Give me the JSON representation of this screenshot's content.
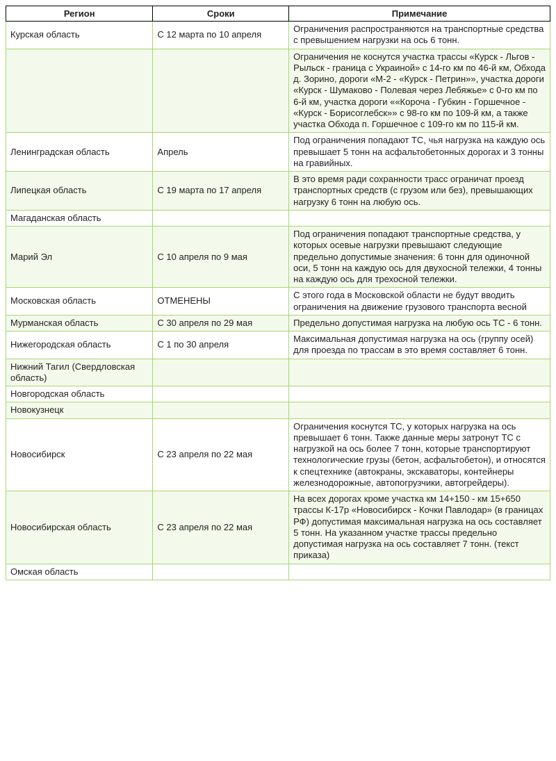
{
  "columns": [
    "Регион",
    "Сроки",
    "Примечание"
  ],
  "border_color": "#a8d66f",
  "alt_bg": "#f3faeb",
  "col_widths_pct": [
    27,
    25,
    48
  ],
  "rows": [
    {
      "alt": false,
      "cells": [
        "Курская область",
        "С 12 марта по 10 апреля",
        "Ограничения распространяются на транспортные средства с превышением нагрузки на ось 6 тонн."
      ]
    },
    {
      "alt": true,
      "cells": [
        "",
        "",
        "Ограничения не коснутся участка трассы «Курск - Льгов - Рыльск - граница с Украиной» с 14-го км по 46-й км, Обхода д. Зорино, дороги «М-2 - «Курск - Петрин»», участка дороги «Курск - Шумаково - Полевая через Лебяжье» с 0-го км по 6-й км, участка дороги ««Короча - Губкин - Горшечное - «Курск - Борисоглебск»» с 98-го км по 109-й км, а также участка Обхода п. Горшечное с 109-го км по 115-й км."
      ]
    },
    {
      "alt": false,
      "cells": [
        "Ленинградская область",
        "Апрель",
        "Под ограничения попадают ТС, чья нагрузка на каждую ось превышает 5 тонн на асфальтобетонных дорогах и 3 тонны на гравийных."
      ]
    },
    {
      "alt": true,
      "cells": [
        "Липецкая область",
        "С 19 марта по 17 апреля",
        "В это время ради сохранности трасс ограничат проезд транспортных средств (с грузом или без), превышающих нагрузку 6 тонн на любую ось."
      ]
    },
    {
      "alt": false,
      "cells": [
        "Магаданская область",
        "",
        ""
      ]
    },
    {
      "alt": true,
      "cells": [
        "Марий Эл",
        "С 10 апреля по 9 мая",
        "Под ограничения попадают транспортные средства, у которых осевые нагрузки превышают следующие предельно допустимые значения: 6 тонн для одиночной оси, 5 тонн на каждую ось для двухосной тележки, 4 тонны на каждую ось для трехосной тележки."
      ]
    },
    {
      "alt": false,
      "cells": [
        "Московская область",
        "ОТМЕНЕНЫ",
        "С этого года в Московской области не будут вводить ограничения на движение грузового транспорта весной"
      ]
    },
    {
      "alt": true,
      "cells": [
        "Мурманская область",
        "С 30 апреля по 29 мая",
        "Предельно допустимая нагрузка на любую ось ТС - 6 тонн."
      ]
    },
    {
      "alt": false,
      "cells": [
        "Нижегородская область",
        "С 1 по 30 апреля",
        "Максимальная допустимая нагрузка на ось (группу осей) для проезда по трассам в это время составляет 6 тонн."
      ]
    },
    {
      "alt": true,
      "cells": [
        "Нижний Тагил (Свердловская область)",
        "",
        ""
      ]
    },
    {
      "alt": false,
      "cells": [
        "Новгородская область",
        "",
        ""
      ]
    },
    {
      "alt": true,
      "cells": [
        "Новокузнецк",
        "",
        ""
      ]
    },
    {
      "alt": false,
      "cells": [
        "Новосибирск",
        "С 23 апреля по 22 мая",
        "Ограничения коснутся ТС, у которых нагрузка на ось превышает 6 тонн. Также данные меры затронут ТС с нагрузкой на ось более 7 тонн, которые транспортируют технологические грузы (бетон, асфальтобетон), и относятся к спецтехнике (автокраны, экскаваторы, контейнеры железнодорожные, автопогрузчики, автогрейдеры)."
      ]
    },
    {
      "alt": true,
      "cells": [
        "Новосибирская область",
        "С 23 апреля по 22 мая",
        "На всех дорогах кроме участка км 14+150 - км 15+650 трассы К-17р «Новосибирск - Кочки Павлодар» (в границах РФ) допустимая максимальная нагрузка на ось составляет 5 тонн. На указанном участке трассы предельно допустимая нагрузка на ось составляет 7 тонн. (текст приказа)"
      ]
    },
    {
      "alt": false,
      "cells": [
        "Омская область",
        "",
        ""
      ]
    }
  ]
}
